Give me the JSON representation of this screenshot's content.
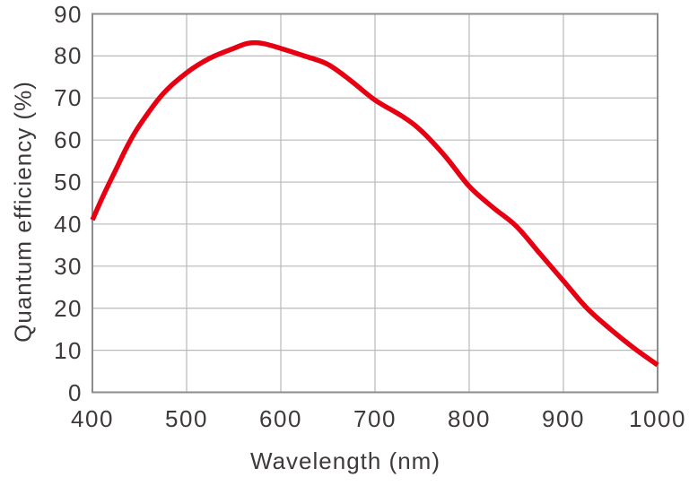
{
  "chart_data": {
    "type": "line",
    "title": "",
    "xlabel": "Wavelength (nm)",
    "ylabel": "Quantum efficiency (%)",
    "xlim": [
      400,
      1000
    ],
    "ylim": [
      0,
      90
    ],
    "x_ticks": [
      400,
      500,
      600,
      700,
      800,
      900,
      1000
    ],
    "y_ticks": [
      0,
      10,
      20,
      30,
      40,
      50,
      60,
      70,
      80,
      90
    ],
    "grid": true,
    "legend": false,
    "series": [
      {
        "name": "Quantum efficiency",
        "color": "#e60012",
        "x": [
          400,
          412,
          425,
          437,
          450,
          475,
          500,
          525,
          550,
          565,
          580,
          600,
          625,
          650,
          675,
          700,
          730,
          750,
          775,
          800,
          825,
          850,
          875,
          900,
          925,
          950,
          975,
          1000
        ],
        "y": [
          41,
          47,
          53,
          58.5,
          63.5,
          71,
          76,
          79.5,
          81.8,
          83,
          83,
          81.8,
          80,
          78,
          74,
          69.5,
          65.5,
          62,
          56,
          49,
          44,
          39.5,
          33,
          26.5,
          20,
          15,
          10.5,
          6.5
        ]
      }
    ],
    "colors": {
      "curve": "#e60012",
      "grid": "#b9b9b9",
      "border": "#8c8c8c",
      "text": "#3e3a39",
      "background": "#ffffff"
    }
  }
}
